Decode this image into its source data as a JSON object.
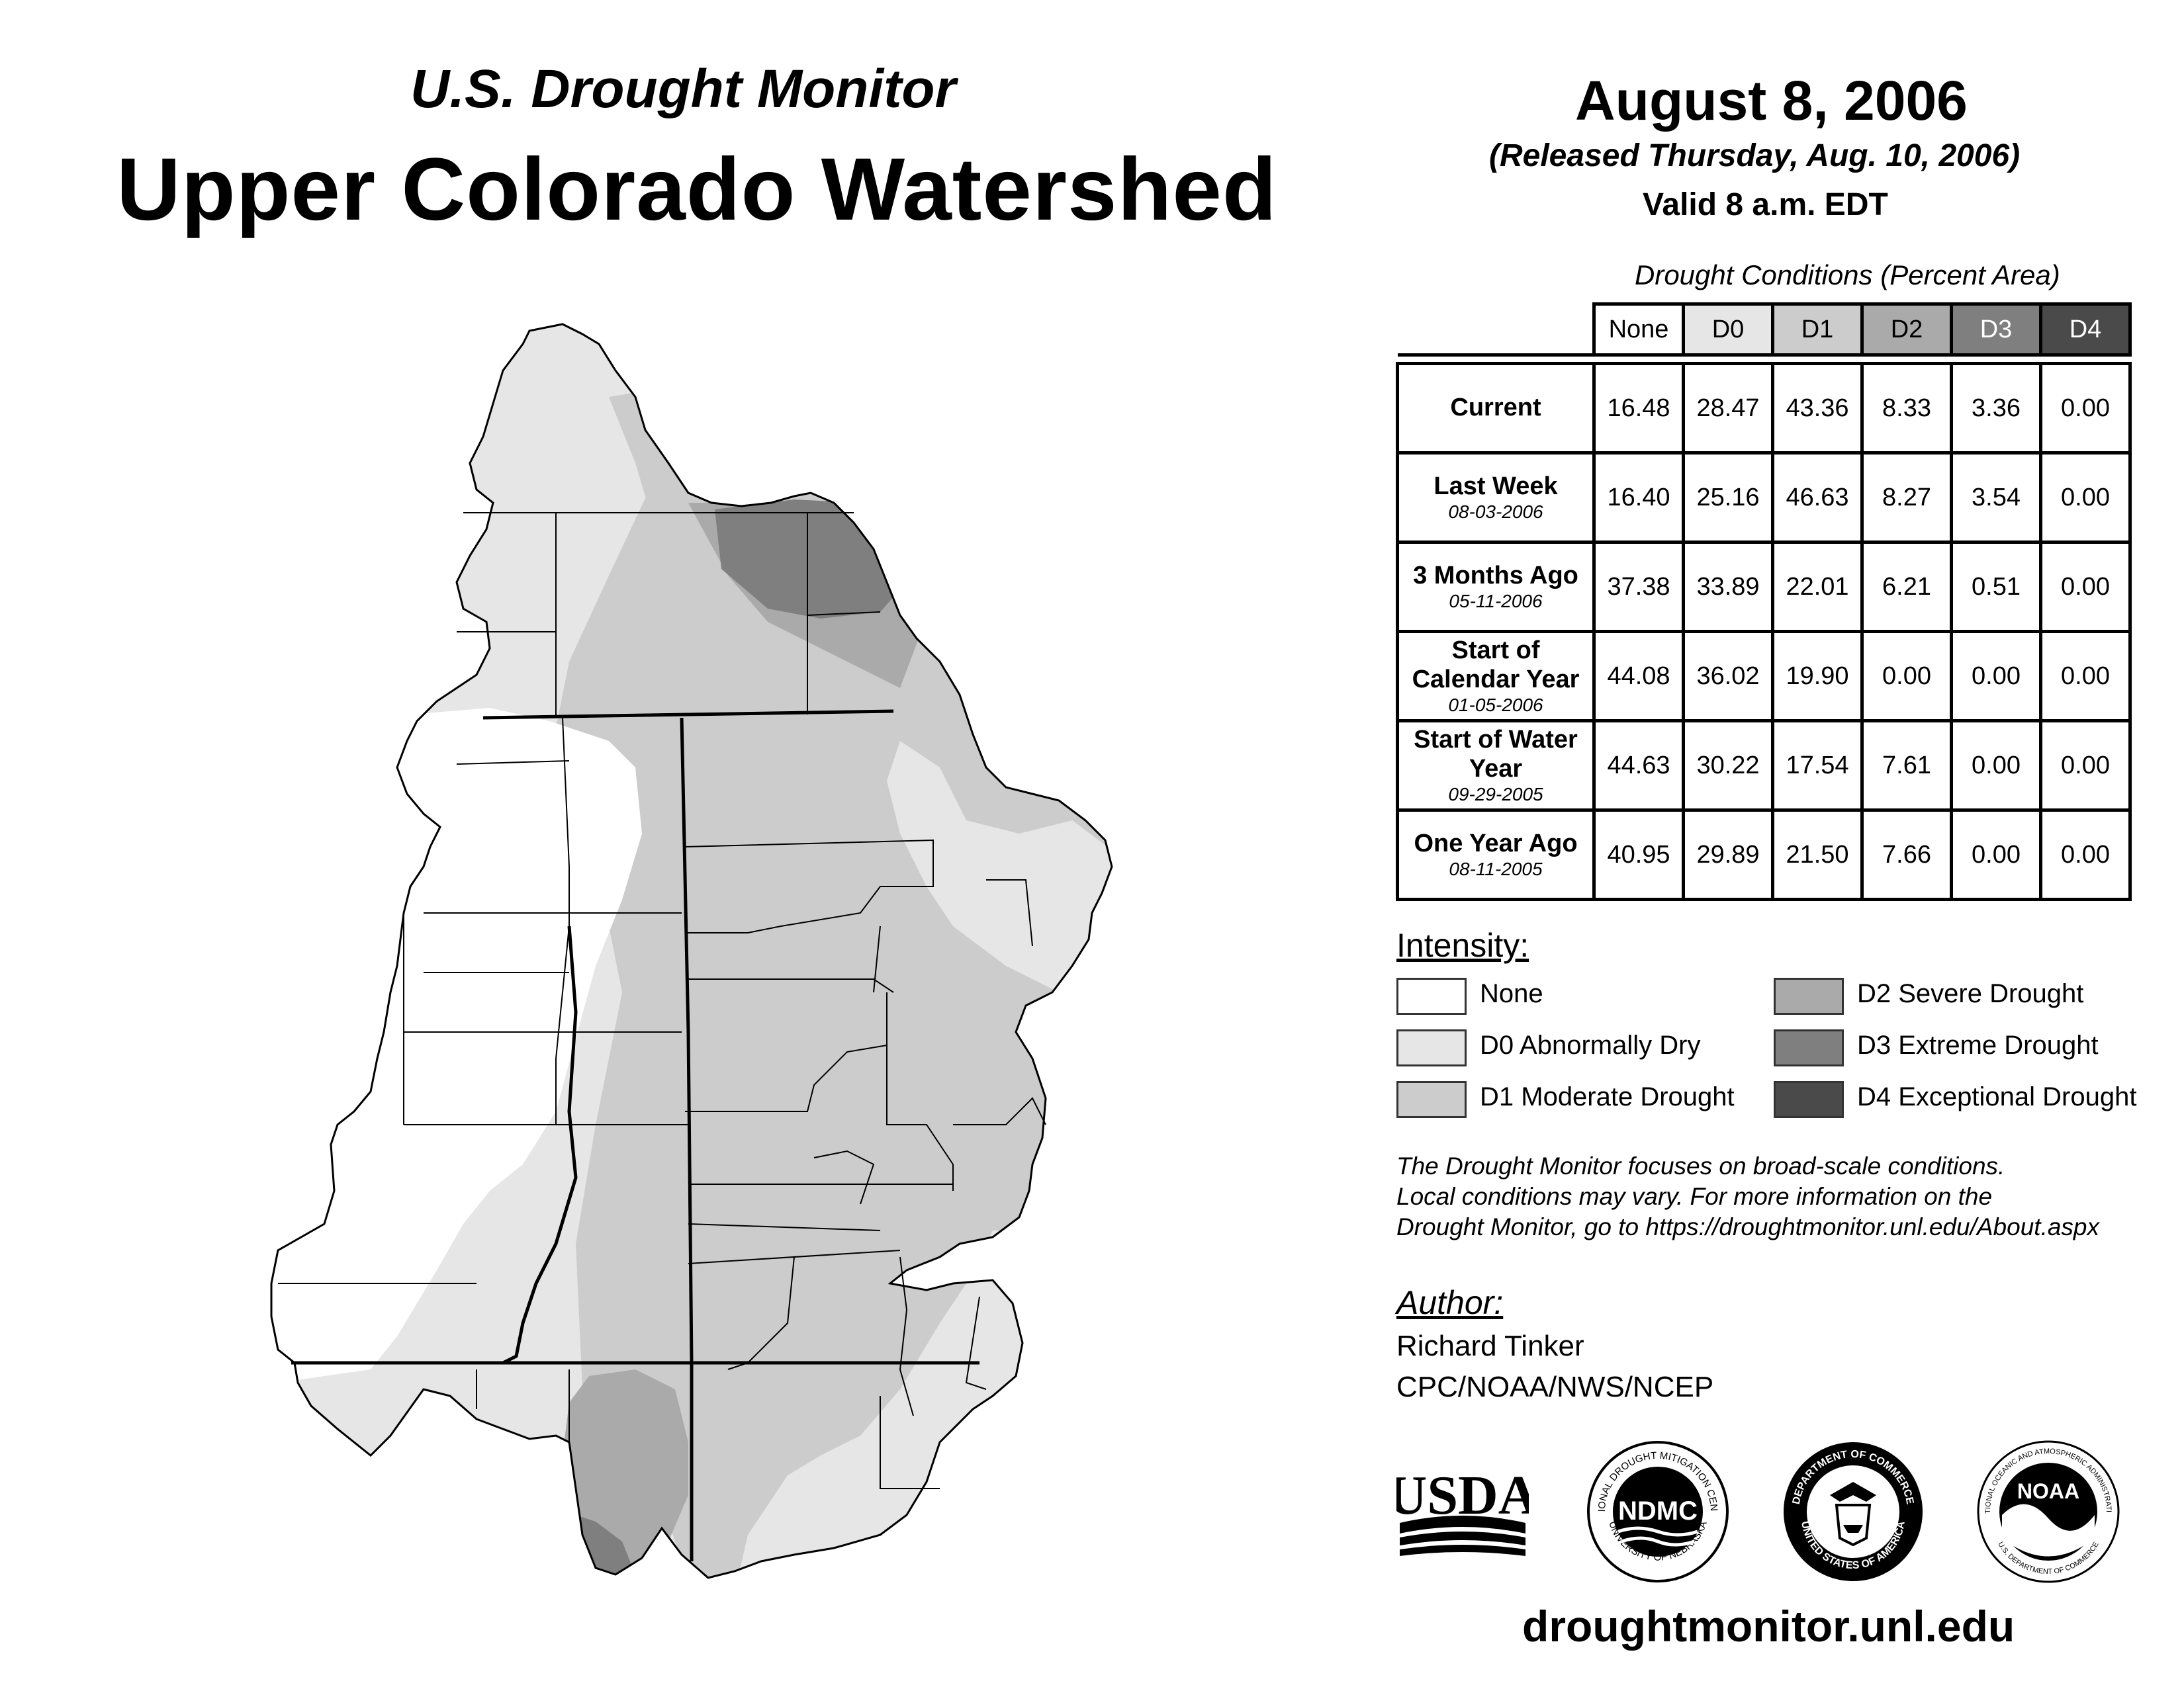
{
  "header": {
    "subtitle": "U.S. Drought Monitor",
    "title": "Upper Colorado Watershed",
    "date": "August 8, 2006",
    "released": "(Released Thursday, Aug. 10, 2006)",
    "valid": "Valid 8 a.m. EDT"
  },
  "table": {
    "caption": "Drought Conditions (Percent Area)",
    "columns": [
      "None",
      "D0",
      "D1",
      "D2",
      "D3",
      "D4"
    ],
    "column_colors": [
      "#ffffff",
      "#e6e6e6",
      "#cccccc",
      "#aaaaaa",
      "#7f7f7f",
      "#4a4a4a"
    ],
    "column_text_colors": [
      "#000000",
      "#000000",
      "#000000",
      "#000000",
      "#ffffff",
      "#ffffff"
    ],
    "rows": [
      {
        "label": "Current",
        "date": "",
        "values": [
          "16.48",
          "28.47",
          "43.36",
          "8.33",
          "3.36",
          "0.00"
        ]
      },
      {
        "label": "Last Week",
        "date": "08-03-2006",
        "values": [
          "16.40",
          "25.16",
          "46.63",
          "8.27",
          "3.54",
          "0.00"
        ]
      },
      {
        "label": "3 Months Ago",
        "date": "05-11-2006",
        "values": [
          "37.38",
          "33.89",
          "22.01",
          "6.21",
          "0.51",
          "0.00"
        ]
      },
      {
        "label": "Start of Calendar Year",
        "date": "01-05-2006",
        "values": [
          "44.08",
          "36.02",
          "19.90",
          "0.00",
          "0.00",
          "0.00"
        ]
      },
      {
        "label": "Start of Water Year",
        "date": "09-29-2005",
        "values": [
          "44.63",
          "30.22",
          "17.54",
          "7.61",
          "0.00",
          "0.00"
        ]
      },
      {
        "label": "One Year Ago",
        "date": "08-11-2005",
        "values": [
          "40.95",
          "29.89",
          "21.50",
          "7.66",
          "0.00",
          "0.00"
        ]
      }
    ]
  },
  "legend": {
    "title": "Intensity:",
    "items": [
      {
        "label": "None",
        "color": "#ffffff"
      },
      {
        "label": "D0 Abnormally Dry",
        "color": "#e6e6e6"
      },
      {
        "label": "D1 Moderate Drought",
        "color": "#cccccc"
      },
      {
        "label": "D2 Severe Drought",
        "color": "#aaaaaa"
      },
      {
        "label": "D3 Extreme Drought",
        "color": "#7f7f7f"
      },
      {
        "label": "D4 Exceptional Drought",
        "color": "#4a4a4a"
      }
    ]
  },
  "note": {
    "line1": "The Drought Monitor focuses on broad-scale conditions.",
    "line2": "Local conditions may vary. For more information on the",
    "line3": "Drought Monitor, go to https://droughtmonitor.unl.edu/About.aspx"
  },
  "author": {
    "title": "Author:",
    "name": "Richard Tinker",
    "org": "CPC/NOAA/NWS/NCEP"
  },
  "logos": {
    "usda": "USDA",
    "ndmc": "NDMC",
    "ndmc_ring_top": "NATIONAL DROUGHT MITIGATION CENTER",
    "ndmc_ring_bottom": "UNIVERSITY OF NEBRASKA",
    "commerce_ring_top": "DEPARTMENT OF COMMERCE",
    "commerce_ring_bottom": "UNITED STATES OF AMERICA",
    "noaa": "NOAA",
    "noaa_ring_top": "NATIONAL OCEANIC AND ATMOSPHERIC ADMINISTRATION",
    "noaa_ring_bottom": "U.S. DEPARTMENT OF COMMERCE"
  },
  "footer": {
    "url": "droughtmonitor.unl.edu"
  },
  "map": {
    "icon": "watershed-drought-map",
    "colors": {
      "none": "#ffffff",
      "d0": "#e6e6e6",
      "d1": "#cccccc",
      "d2": "#aaaaaa",
      "d3": "#7f7f7f"
    }
  }
}
